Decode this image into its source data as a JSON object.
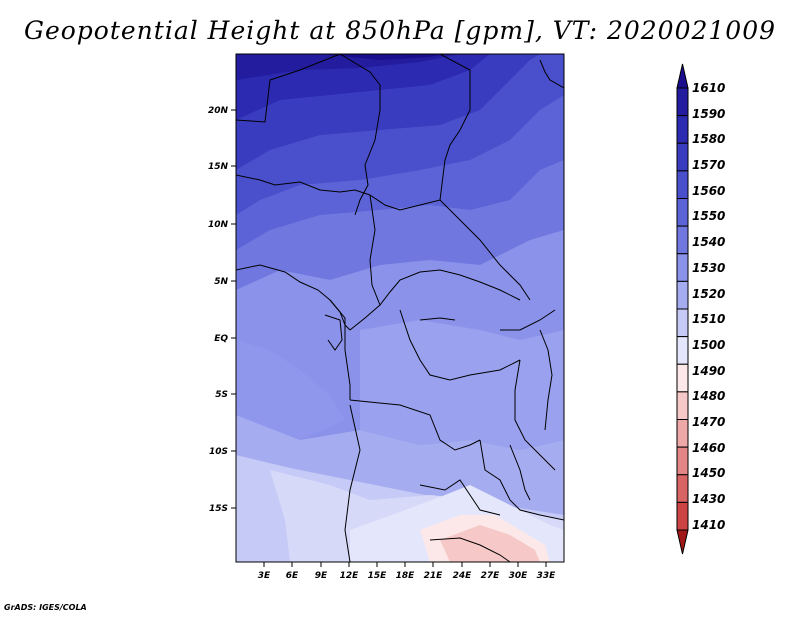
{
  "title": "Geopotential Height at 850hPa [gpm], VT: 2020021009",
  "credit": "GrADS: IGES/COLA",
  "map": {
    "lat_labels": [
      "20N",
      "15N",
      "10N",
      "5N",
      "EQ",
      "5S",
      "10S",
      "15S"
    ],
    "lon_labels": [
      "3E",
      "6E",
      "9E",
      "12E",
      "15E",
      "18E",
      "21E",
      "24E",
      "27E",
      "30E",
      "33E"
    ]
  },
  "colorbar": {
    "levels": [
      "1610",
      "1590",
      "1580",
      "1570",
      "1560",
      "1550",
      "1540",
      "1530",
      "1520",
      "1510",
      "1500",
      "1490",
      "1480",
      "1470",
      "1460",
      "1450",
      "1430",
      "1410"
    ],
    "colors": [
      "#1a0e8c",
      "#231c9e",
      "#2c2ab0",
      "#3a3cc0",
      "#4a4fcc",
      "#5c63d6",
      "#7078e0",
      "#8a92ea",
      "#a6acf0",
      "#c6caf6",
      "#e4e6fb",
      "#fce8e8",
      "#f6c8c8",
      "#eea8a8",
      "#e48686",
      "#d86464",
      "#cc4444",
      "#b82a2a",
      "#a01818"
    ]
  }
}
